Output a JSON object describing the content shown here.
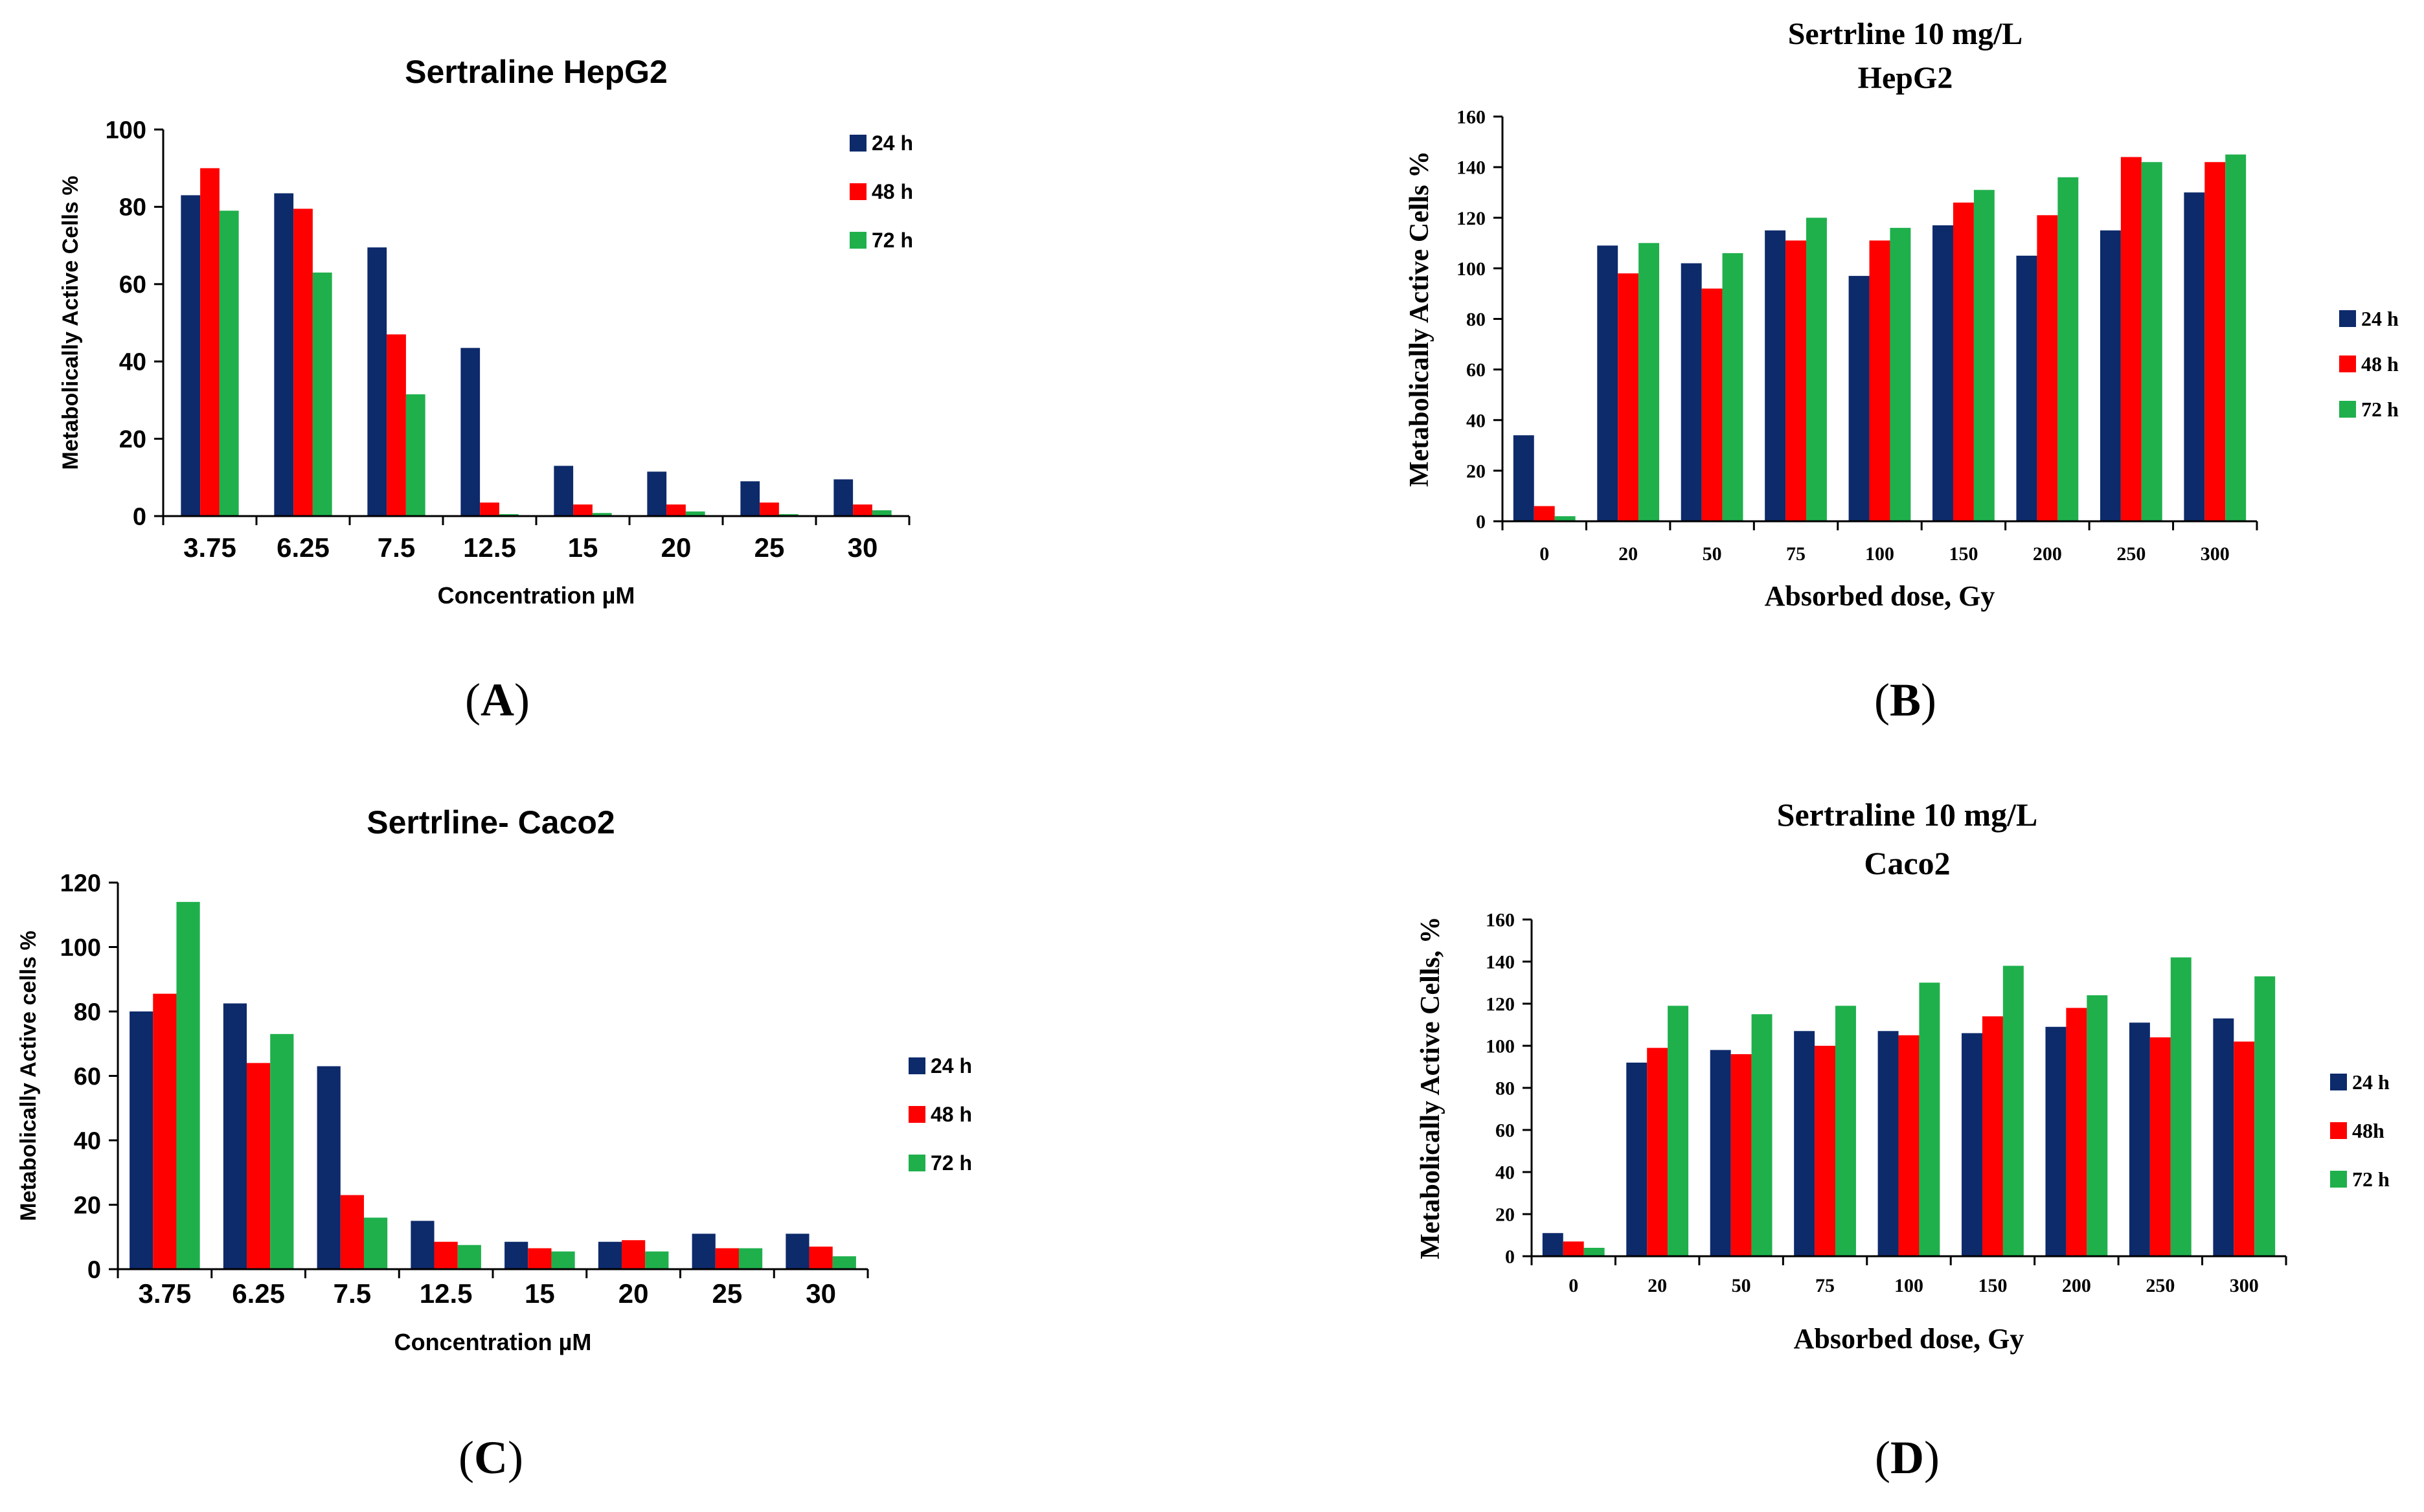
{
  "colors": {
    "series_24h": "#0d2a6b",
    "series_48h": "#ff0000",
    "series_72h": "#1fb04c",
    "axis": "#000000",
    "background": "#ffffff"
  },
  "chart_data": [
    {
      "panel_label": "A",
      "type": "bar",
      "title": "Sertraline HepG2",
      "subtitle": "",
      "xlabel": "Concentration  µM",
      "ylabel": "Metabolically  Active Cells %",
      "categories": [
        "3.75",
        "6.25",
        "7.5",
        "12.5",
        "15",
        "20",
        "25",
        "30"
      ],
      "ylim": [
        0,
        100
      ],
      "yticks": [
        0,
        20,
        40,
        60,
        80,
        100
      ],
      "grid": false,
      "legend_position": "top-right",
      "series": [
        {
          "name": "24 h",
          "values": [
            83,
            83.5,
            69.5,
            43.5,
            13,
            11.5,
            9,
            9.5
          ]
        },
        {
          "name": "48 h",
          "values": [
            90,
            79.5,
            47,
            3.5,
            3,
            3,
            3.5,
            3
          ]
        },
        {
          "name": "72 h",
          "values": [
            79,
            63,
            31.5,
            0.5,
            0.8,
            1.2,
            0.5,
            1.5
          ]
        }
      ]
    },
    {
      "panel_label": "B",
      "type": "bar",
      "title": "Sertrline 10 mg/L",
      "subtitle": "HepG2",
      "xlabel": "Absorbed dose, Gy",
      "ylabel": "Metabolically Active Cells %",
      "categories": [
        "0",
        "20",
        "50",
        "75",
        "100",
        "150",
        "200",
        "250",
        "300"
      ],
      "ylim": [
        0,
        160
      ],
      "yticks": [
        0,
        20,
        40,
        60,
        80,
        100,
        120,
        140,
        160
      ],
      "grid": false,
      "legend_position": "right",
      "series": [
        {
          "name": "24 h",
          "values": [
            34,
            109,
            102,
            115,
            97,
            117,
            105,
            115,
            130
          ]
        },
        {
          "name": "48 h",
          "values": [
            6,
            98,
            92,
            111,
            111,
            126,
            121,
            144,
            142
          ]
        },
        {
          "name": "72 h",
          "values": [
            2,
            110,
            106,
            120,
            116,
            131,
            136,
            142,
            145
          ]
        }
      ]
    },
    {
      "panel_label": "C",
      "type": "bar",
      "title": "Sertrline- Caco2",
      "subtitle": "",
      "xlabel": "Concentration µM",
      "ylabel": "Metabolically Active cells %",
      "categories": [
        "3.75",
        "6.25",
        "7.5",
        "12.5",
        "15",
        "20",
        "25",
        "30"
      ],
      "ylim": [
        0,
        120
      ],
      "yticks": [
        0,
        20,
        40,
        60,
        80,
        100,
        120
      ],
      "grid": false,
      "legend_position": "right",
      "series": [
        {
          "name": "24 h",
          "values": [
            80,
            82.5,
            63,
            15,
            8.5,
            8.5,
            11,
            11
          ]
        },
        {
          "name": "48 h",
          "values": [
            85.5,
            64,
            23,
            8.5,
            6.5,
            9,
            6.5,
            7
          ]
        },
        {
          "name": "72 h",
          "values": [
            114,
            73,
            16,
            7.5,
            5.5,
            5.5,
            6.5,
            4
          ]
        }
      ]
    },
    {
      "panel_label": "D",
      "type": "bar",
      "title": "Sertraline 10 mg/L",
      "subtitle": "Caco2",
      "xlabel": "Absorbed dose, Gy",
      "ylabel": "Metabolically Active Cells, %",
      "categories": [
        "0",
        "20",
        "50",
        "75",
        "100",
        "150",
        "200",
        "250",
        "300"
      ],
      "ylim": [
        0,
        160
      ],
      "yticks": [
        0,
        20,
        40,
        60,
        80,
        100,
        120,
        140,
        160
      ],
      "grid": false,
      "legend_position": "right",
      "series": [
        {
          "name": "24 h",
          "values": [
            11,
            92,
            98,
            107,
            107,
            106,
            109,
            111,
            113
          ]
        },
        {
          "name": "48h",
          "values": [
            7,
            99,
            96,
            100,
            105,
            114,
            118,
            104,
            102
          ]
        },
        {
          "name": "72 h",
          "values": [
            4,
            119,
            115,
            119,
            130,
            138,
            124,
            142,
            133
          ]
        }
      ]
    }
  ]
}
